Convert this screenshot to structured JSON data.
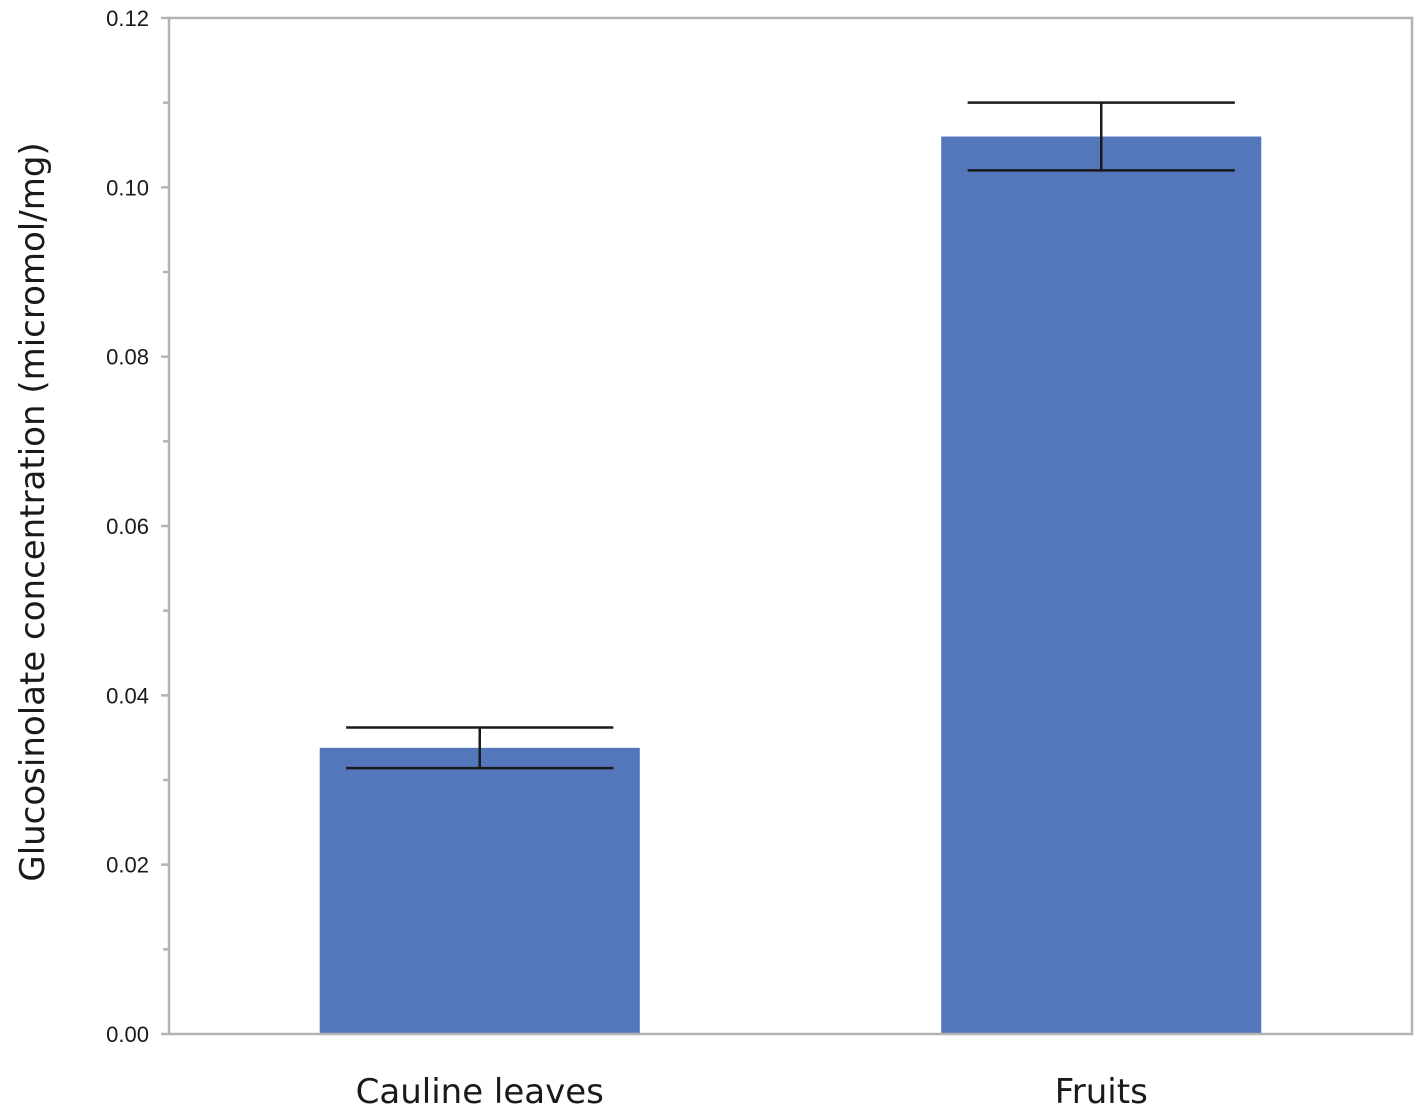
{
  "chart_data": {
    "type": "bar",
    "categories": [
      "Cauline leaves",
      "Fruits"
    ],
    "values": [
      0.0338,
      0.106
    ],
    "error_low": [
      0.0314,
      0.102
    ],
    "error_high": [
      0.0362,
      0.11
    ],
    "ylabel": "Glucosinolate concentration (micromol/mg)",
    "ylim": [
      0,
      0.12
    ],
    "yticks": [
      "0.00",
      "0.02",
      "0.04",
      "0.06",
      "0.08",
      "0.10",
      "0.12"
    ],
    "ytick_values": [
      0,
      0.02,
      0.04,
      0.06,
      0.08,
      0.1,
      0.12
    ],
    "minor_tick_values": [
      0.01,
      0.03,
      0.05,
      0.07,
      0.09,
      0.11
    ],
    "grid": false,
    "bar_color": "#5476ba",
    "error_bar_color": "#1a1a1a",
    "frame_color": "#b3b3b3"
  }
}
